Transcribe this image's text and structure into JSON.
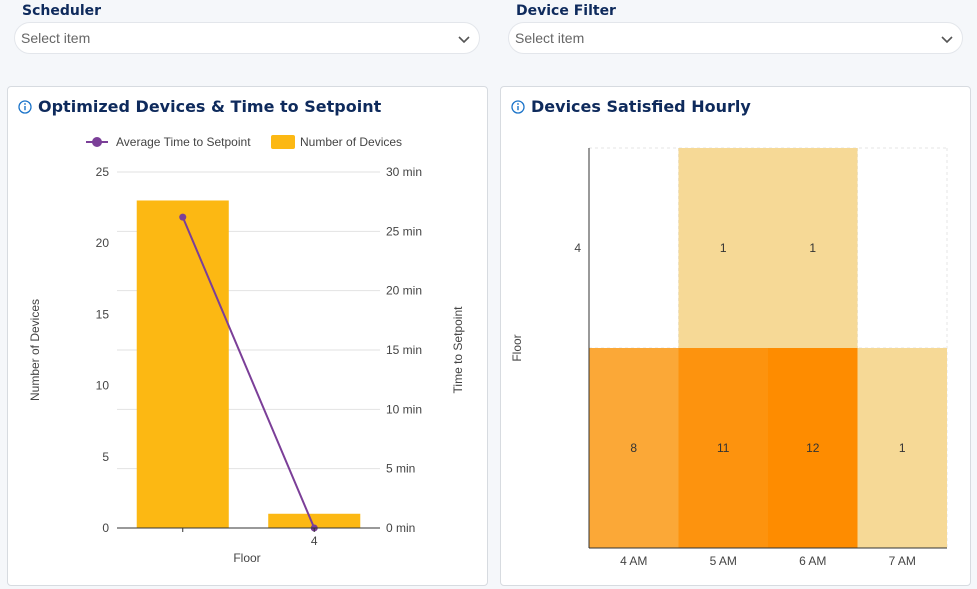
{
  "filters": {
    "scheduler": {
      "label": "Scheduler",
      "placeholder": "Select item",
      "icon": "chevron-down-icon"
    },
    "device_filter": {
      "label": "Device Filter",
      "placeholder": "Select item",
      "icon": "chevron-down-icon"
    }
  },
  "cards": {
    "left": {
      "title": "Optimized Devices & Time to Setpoint",
      "icon": "info-icon"
    },
    "right": {
      "title": "Devices Satisfied Hourly",
      "icon": "info-icon"
    }
  },
  "colors": {
    "bar": "#fcb813",
    "line": "#7b3f98",
    "title": "#0e2a5c"
  },
  "chart_data": [
    {
      "type": "bar",
      "categories": [
        "",
        "4"
      ],
      "xlabel": "Floor",
      "ylabel": "Number of Devices",
      "y2label": "Time to Setpoint",
      "ylim": [
        0,
        25
      ],
      "y2lim": [
        0,
        30
      ],
      "y_ticks": [
        0,
        5,
        10,
        15,
        20,
        25
      ],
      "y2_ticks": [
        "0 min",
        "5 min",
        "10 min",
        "15 min",
        "20 min",
        "25 min",
        "30 min"
      ],
      "series": [
        {
          "name": "Number of Devices",
          "type": "bar",
          "axis": "left",
          "values": [
            23,
            1
          ]
        },
        {
          "name": "Average Time to Setpoint",
          "type": "line",
          "axis": "right",
          "values": [
            26.2,
            0
          ]
        }
      ],
      "legend": "top"
    },
    {
      "type": "heatmap",
      "x_categories": [
        "4 AM",
        "5 AM",
        "6 AM",
        "7 AM"
      ],
      "y_categories": [
        "4",
        ""
      ],
      "ylabel": "Floor",
      "cells": [
        {
          "x": "5 AM",
          "y": "4",
          "value": 1
        },
        {
          "x": "6 AM",
          "y": "4",
          "value": 1
        },
        {
          "x": "4 AM",
          "y": "",
          "value": 8
        },
        {
          "x": "5 AM",
          "y": "",
          "value": 11
        },
        {
          "x": "6 AM",
          "y": "",
          "value": 12
        },
        {
          "x": "7 AM",
          "y": "",
          "value": 1
        }
      ],
      "color_range": [
        "#f6d996",
        "#fe8c00"
      ]
    }
  ]
}
